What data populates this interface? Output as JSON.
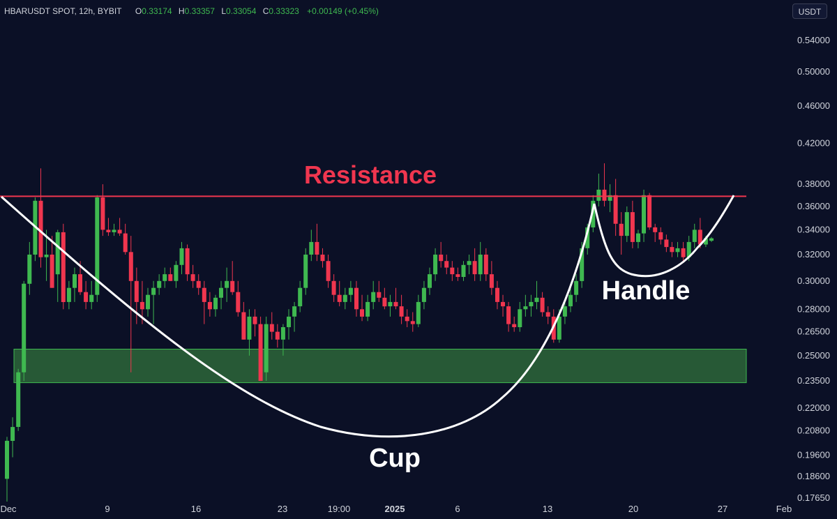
{
  "header": {
    "symbol": "HBARUSDT SPOT, 12h, BYBIT",
    "open_label": "O",
    "open_value": "0.33174",
    "high_label": "H",
    "high_value": "0.33357",
    "low_label": "L",
    "low_value": "0.33054",
    "close_label": "C",
    "close_value": "0.33323",
    "change": "+0.00149 (+0.45%)"
  },
  "currency_button": "USDT",
  "colors": {
    "background": "#0b1026",
    "up": "#3fb950",
    "down": "#f0364f",
    "resistance": "#f0364f",
    "support_zone": "#2d6a3a",
    "pattern_line": "#ffffff"
  },
  "chart_data": {
    "type": "candlestick",
    "title": "",
    "price_scale": "log",
    "ylim": [
      0.1765,
      0.54
    ],
    "y_ticks": [
      "0.54000",
      "0.50000",
      "0.46000",
      "0.42000",
      "0.38000",
      "0.36000",
      "0.34000",
      "0.32000",
      "0.30000",
      "0.28000",
      "0.26500",
      "0.25000",
      "0.23500",
      "0.22000",
      "0.20800",
      "0.19600",
      "0.18600",
      "0.17650"
    ],
    "x_ticks": [
      "Dec",
      "9",
      "16",
      "23",
      "19:00",
      "2025",
      "6",
      "13",
      "20",
      "27",
      "Feb"
    ],
    "annotations": {
      "resistance_label": "Resistance",
      "resistance_price": 0.369,
      "support_zone": [
        0.234,
        0.254
      ],
      "cup_label": "Cup",
      "handle_label": "Handle"
    },
    "candles": [
      [
        0.185,
        0.205,
        0.175,
        0.203
      ],
      [
        0.203,
        0.215,
        0.195,
        0.21
      ],
      [
        0.21,
        0.242,
        0.208,
        0.24
      ],
      [
        0.24,
        0.3,
        0.235,
        0.298
      ],
      [
        0.298,
        0.33,
        0.29,
        0.32
      ],
      [
        0.32,
        0.368,
        0.315,
        0.365
      ],
      [
        0.365,
        0.395,
        0.31,
        0.318
      ],
      [
        0.318,
        0.34,
        0.3,
        0.32
      ],
      [
        0.32,
        0.335,
        0.295,
        0.295
      ],
      [
        0.305,
        0.34,
        0.285,
        0.338
      ],
      [
        0.338,
        0.345,
        0.28,
        0.285
      ],
      [
        0.285,
        0.3,
        0.28,
        0.295
      ],
      [
        0.295,
        0.31,
        0.285,
        0.305
      ],
      [
        0.305,
        0.315,
        0.29,
        0.292
      ],
      [
        0.292,
        0.3,
        0.28,
        0.285
      ],
      [
        0.285,
        0.3,
        0.28,
        0.29
      ],
      [
        0.29,
        0.37,
        0.285,
        0.368
      ],
      [
        0.368,
        0.38,
        0.335,
        0.34
      ],
      [
        0.34,
        0.35,
        0.335,
        0.338
      ],
      [
        0.338,
        0.345,
        0.335,
        0.34
      ],
      [
        0.34,
        0.35,
        0.335,
        0.337
      ],
      [
        0.337,
        0.345,
        0.32,
        0.322
      ],
      [
        0.322,
        0.335,
        0.24,
        0.3
      ],
      [
        0.3,
        0.31,
        0.27,
        0.285
      ],
      [
        0.285,
        0.3,
        0.27,
        0.28
      ],
      [
        0.28,
        0.295,
        0.275,
        0.29
      ],
      [
        0.29,
        0.3,
        0.27,
        0.295
      ],
      [
        0.295,
        0.305,
        0.29,
        0.3
      ],
      [
        0.3,
        0.31,
        0.295,
        0.305
      ],
      [
        0.305,
        0.31,
        0.3,
        0.3
      ],
      [
        0.3,
        0.315,
        0.295,
        0.312
      ],
      [
        0.312,
        0.33,
        0.305,
        0.325
      ],
      [
        0.325,
        0.328,
        0.3,
        0.305
      ],
      [
        0.305,
        0.312,
        0.295,
        0.3
      ],
      [
        0.3,
        0.305,
        0.29,
        0.295
      ],
      [
        0.295,
        0.3,
        0.27,
        0.285
      ],
      [
        0.285,
        0.292,
        0.275,
        0.28
      ],
      [
        0.28,
        0.29,
        0.275,
        0.288
      ],
      [
        0.288,
        0.3,
        0.28,
        0.295
      ],
      [
        0.295,
        0.31,
        0.285,
        0.3
      ],
      [
        0.3,
        0.315,
        0.29,
        0.292
      ],
      [
        0.292,
        0.3,
        0.275,
        0.278
      ],
      [
        0.278,
        0.285,
        0.26,
        0.26
      ],
      [
        0.26,
        0.28,
        0.25,
        0.275
      ],
      [
        0.275,
        0.28,
        0.262,
        0.27
      ],
      [
        0.27,
        0.275,
        0.235,
        0.235
      ],
      [
        0.24,
        0.275,
        0.235,
        0.27
      ],
      [
        0.27,
        0.278,
        0.26,
        0.265
      ],
      [
        0.265,
        0.27,
        0.255,
        0.26
      ],
      [
        0.26,
        0.27,
        0.25,
        0.268
      ],
      [
        0.268,
        0.28,
        0.26,
        0.275
      ],
      [
        0.275,
        0.285,
        0.265,
        0.282
      ],
      [
        0.282,
        0.3,
        0.278,
        0.295
      ],
      [
        0.295,
        0.325,
        0.29,
        0.32
      ],
      [
        0.32,
        0.34,
        0.315,
        0.33
      ],
      [
        0.33,
        0.345,
        0.315,
        0.32
      ],
      [
        0.32,
        0.325,
        0.31,
        0.315
      ],
      [
        0.315,
        0.32,
        0.295,
        0.3
      ],
      [
        0.3,
        0.305,
        0.285,
        0.29
      ],
      [
        0.29,
        0.3,
        0.282,
        0.285
      ],
      [
        0.285,
        0.295,
        0.28,
        0.29
      ],
      [
        0.29,
        0.3,
        0.285,
        0.295
      ],
      [
        0.295,
        0.3,
        0.275,
        0.28
      ],
      [
        0.28,
        0.29,
        0.272,
        0.275
      ],
      [
        0.275,
        0.29,
        0.272,
        0.285
      ],
      [
        0.285,
        0.3,
        0.28,
        0.292
      ],
      [
        0.292,
        0.3,
        0.285,
        0.288
      ],
      [
        0.288,
        0.295,
        0.28,
        0.282
      ],
      [
        0.282,
        0.29,
        0.275,
        0.285
      ],
      [
        0.285,
        0.295,
        0.28,
        0.282
      ],
      [
        0.282,
        0.29,
        0.27,
        0.275
      ],
      [
        0.275,
        0.28,
        0.268,
        0.272
      ],
      [
        0.272,
        0.278,
        0.265,
        0.27
      ],
      [
        0.27,
        0.29,
        0.268,
        0.285
      ],
      [
        0.285,
        0.3,
        0.28,
        0.295
      ],
      [
        0.295,
        0.31,
        0.29,
        0.305
      ],
      [
        0.305,
        0.325,
        0.3,
        0.32
      ],
      [
        0.32,
        0.33,
        0.31,
        0.315
      ],
      [
        0.315,
        0.32,
        0.305,
        0.31
      ],
      [
        0.31,
        0.315,
        0.3,
        0.305
      ],
      [
        0.305,
        0.31,
        0.3,
        0.303
      ],
      [
        0.303,
        0.315,
        0.3,
        0.312
      ],
      [
        0.312,
        0.32,
        0.305,
        0.315
      ],
      [
        0.315,
        0.325,
        0.3,
        0.305
      ],
      [
        0.305,
        0.33,
        0.3,
        0.32
      ],
      [
        0.32,
        0.325,
        0.3,
        0.305
      ],
      [
        0.305,
        0.315,
        0.29,
        0.295
      ],
      [
        0.295,
        0.3,
        0.28,
        0.285
      ],
      [
        0.285,
        0.29,
        0.275,
        0.282
      ],
      [
        0.282,
        0.285,
        0.265,
        0.27
      ],
      [
        0.27,
        0.275,
        0.265,
        0.268
      ],
      [
        0.268,
        0.285,
        0.265,
        0.28
      ],
      [
        0.28,
        0.29,
        0.275,
        0.282
      ],
      [
        0.282,
        0.29,
        0.275,
        0.285
      ],
      [
        0.285,
        0.3,
        0.28,
        0.288
      ],
      [
        0.288,
        0.292,
        0.275,
        0.278
      ],
      [
        0.278,
        0.282,
        0.27,
        0.275
      ],
      [
        0.275,
        0.28,
        0.258,
        0.26
      ],
      [
        0.26,
        0.28,
        0.258,
        0.275
      ],
      [
        0.275,
        0.285,
        0.27,
        0.282
      ],
      [
        0.282,
        0.295,
        0.278,
        0.29
      ],
      [
        0.29,
        0.305,
        0.285,
        0.3
      ],
      [
        0.3,
        0.33,
        0.295,
        0.325
      ],
      [
        0.325,
        0.345,
        0.32,
        0.342
      ],
      [
        0.342,
        0.37,
        0.338,
        0.365
      ],
      [
        0.365,
        0.39,
        0.36,
        0.375
      ],
      [
        0.375,
        0.4,
        0.36,
        0.365
      ],
      [
        0.365,
        0.38,
        0.355,
        0.37
      ],
      [
        0.37,
        0.385,
        0.335,
        0.345
      ],
      [
        0.345,
        0.355,
        0.32,
        0.335
      ],
      [
        0.335,
        0.36,
        0.33,
        0.355
      ],
      [
        0.355,
        0.365,
        0.325,
        0.33
      ],
      [
        0.33,
        0.34,
        0.325,
        0.337
      ],
      [
        0.337,
        0.375,
        0.33,
        0.37
      ],
      [
        0.37,
        0.372,
        0.34,
        0.342
      ],
      [
        0.342,
        0.345,
        0.33,
        0.338
      ],
      [
        0.338,
        0.342,
        0.328,
        0.332
      ],
      [
        0.332,
        0.336,
        0.322,
        0.326
      ],
      [
        0.326,
        0.33,
        0.318,
        0.322
      ],
      [
        0.322,
        0.33,
        0.318,
        0.325
      ],
      [
        0.325,
        0.33,
        0.315,
        0.318
      ],
      [
        0.318,
        0.335,
        0.315,
        0.33
      ],
      [
        0.33,
        0.345,
        0.325,
        0.34
      ],
      [
        0.34,
        0.35,
        0.325,
        0.328
      ],
      [
        0.328,
        0.335,
        0.326,
        0.333
      ],
      [
        0.331,
        0.334,
        0.33,
        0.333
      ]
    ]
  }
}
